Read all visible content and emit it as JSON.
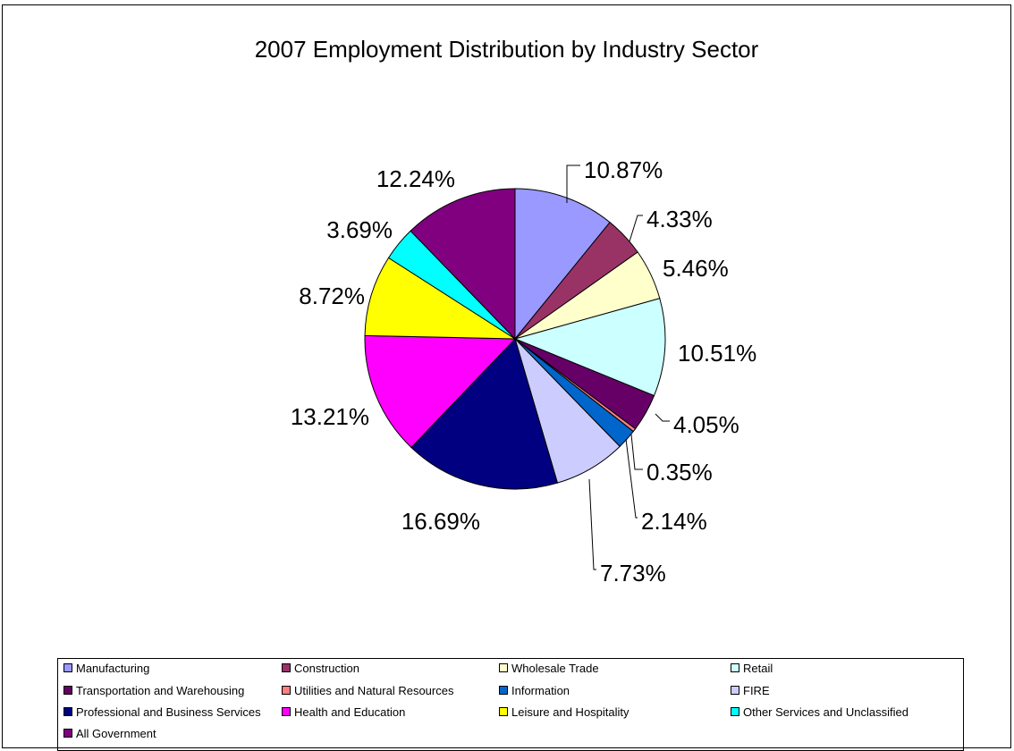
{
  "chart_data": {
    "type": "pie",
    "title": "2007 Employment Distribution by Industry Sector",
    "slices": [
      {
        "label": "Manufacturing",
        "value": 10.87,
        "display": "10.87%",
        "color": "#9999FF"
      },
      {
        "label": "Construction",
        "value": 4.33,
        "display": "4.33%",
        "color": "#993366"
      },
      {
        "label": "Wholesale Trade",
        "value": 5.46,
        "display": "5.46%",
        "color": "#FFFFCC"
      },
      {
        "label": "Retail",
        "value": 10.51,
        "display": "10.51%",
        "color": "#CCFFFF"
      },
      {
        "label": "Transportation and Warehousing",
        "value": 4.05,
        "display": "4.05%",
        "color": "#660066"
      },
      {
        "label": "Utilities and Natural Resources",
        "value": 0.35,
        "display": "0.35%",
        "color": "#FF8080"
      },
      {
        "label": "Information",
        "value": 2.14,
        "display": "2.14%",
        "color": "#0066CC"
      },
      {
        "label": "FIRE",
        "value": 7.73,
        "display": "7.73%",
        "color": "#CCCCFF"
      },
      {
        "label": "Professional and Business Services",
        "value": 16.69,
        "display": "16.69%",
        "color": "#000080"
      },
      {
        "label": "Health and Education",
        "value": 13.21,
        "display": "13.21%",
        "color": "#FF00FF"
      },
      {
        "label": "Leisure and Hospitality",
        "value": 8.72,
        "display": "8.72%",
        "color": "#FFFF00"
      },
      {
        "label": "Other Services and Unclassified",
        "value": 3.69,
        "display": "3.69%",
        "color": "#00FFFF"
      },
      {
        "label": "All Government",
        "value": 12.24,
        "display": "12.24%",
        "color": "#800080"
      }
    ],
    "start": "12 o'clock",
    "direction": "clockwise",
    "legend_placement": "bottom"
  }
}
